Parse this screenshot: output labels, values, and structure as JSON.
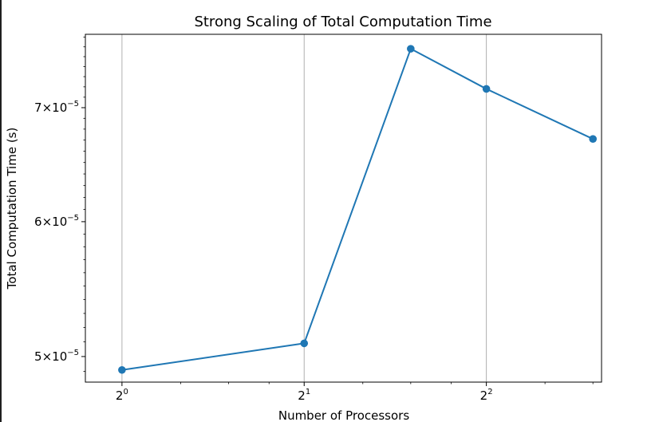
{
  "chart_data": {
    "type": "line",
    "title": "Strong Scaling of Total Computation Time",
    "xlabel": "Number of Processors",
    "ylabel": "Total Computation Time (s)",
    "x_scale": "log2",
    "y_scale": "log",
    "xlim": [
      0.87,
      6.2
    ],
    "ylim": [
      4.83e-05,
      7.73e-05
    ],
    "grid": "x",
    "line_color": "#1f77b4",
    "marker": "circle",
    "x_ticks": [
      {
        "value": 1,
        "base": "2",
        "exp": "0"
      },
      {
        "value": 2,
        "base": "2",
        "exp": "1"
      },
      {
        "value": 4,
        "base": "2",
        "exp": "2"
      }
    ],
    "y_ticks": [
      {
        "value": 5e-05,
        "mant": "5",
        "base": "10",
        "exp": "−5"
      },
      {
        "value": 6e-05,
        "mant": "6",
        "base": "10",
        "exp": "−5"
      },
      {
        "value": 7e-05,
        "mant": "7",
        "base": "10",
        "exp": "−5"
      }
    ],
    "series": [
      {
        "x": [
          1,
          2,
          3,
          4,
          6
        ],
        "y": [
          4.91e-05,
          5.09e-05,
          7.58e-05,
          7.18e-05,
          6.71e-05
        ]
      }
    ]
  }
}
